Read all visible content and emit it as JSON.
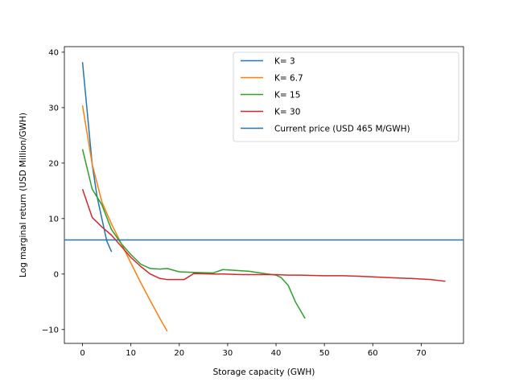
{
  "chart_data": {
    "type": "line",
    "title": "",
    "xlabel": "Storage capacity (GWH)",
    "ylabel": "Log marginal return (USD Million/GWH)",
    "xlim": [
      -3.75,
      78.75
    ],
    "ylim": [
      -12.5,
      41.0
    ],
    "xticks": [
      0,
      10,
      20,
      30,
      40,
      50,
      60,
      70
    ],
    "yticks": [
      -10,
      0,
      10,
      20,
      30,
      40
    ],
    "grid": false,
    "legend_position": "top-right",
    "series": [
      {
        "name": "K= 3",
        "color": "#1f77b4",
        "x": [
          0,
          1,
          2,
          3,
          4,
          5,
          6
        ],
        "y": [
          38.2,
          29.0,
          19.8,
          14.0,
          10.0,
          6.0,
          4.0
        ]
      },
      {
        "name": "K= 6.7",
        "color": "#ff7f0e",
        "x": [
          0,
          2,
          4,
          6,
          8,
          10,
          12,
          14,
          16,
          17.5
        ],
        "y": [
          30.4,
          19.8,
          13.0,
          9.0,
          5.5,
          2.0,
          -1.5,
          -4.8,
          -8.0,
          -10.3
        ]
      },
      {
        "name": "K= 15",
        "color": "#2ca02c",
        "x": [
          0,
          2,
          4,
          6,
          8,
          10,
          12,
          14,
          16,
          17.5,
          20,
          23,
          27,
          29,
          31,
          34.5,
          37.5,
          40,
          41,
          42.5,
          44,
          46
        ],
        "y": [
          22.5,
          15.3,
          12.5,
          8.0,
          5.5,
          3.5,
          1.8,
          1.0,
          0.9,
          1.0,
          0.4,
          0.3,
          0.2,
          0.8,
          0.7,
          0.5,
          0.1,
          -0.2,
          -0.6,
          -2.0,
          -5.0,
          -8.0
        ]
      },
      {
        "name": "K= 30",
        "color": "#d62728",
        "x": [
          0,
          2,
          4,
          6,
          8,
          10,
          12,
          14,
          16,
          17.5,
          19.5,
          21,
          23,
          27,
          29,
          33,
          37.5,
          40,
          42.5,
          45,
          50,
          54,
          57,
          60,
          62,
          65,
          68,
          70,
          72,
          74,
          75
        ],
        "y": [
          15.3,
          10.2,
          8.5,
          7.0,
          5.0,
          3.0,
          1.4,
          0.0,
          -0.8,
          -1.0,
          -1.0,
          -1.0,
          0.1,
          0.0,
          0.0,
          -0.1,
          -0.1,
          -0.1,
          -0.2,
          -0.2,
          -0.3,
          -0.3,
          -0.4,
          -0.5,
          -0.6,
          -0.7,
          -0.8,
          -0.9,
          -1.0,
          -1.2,
          -1.3
        ]
      }
    ],
    "reference_lines": [
      {
        "name": "Current price (USD 465 M/GWH)",
        "color": "#1f77b4",
        "y": 6.14
      }
    ]
  }
}
